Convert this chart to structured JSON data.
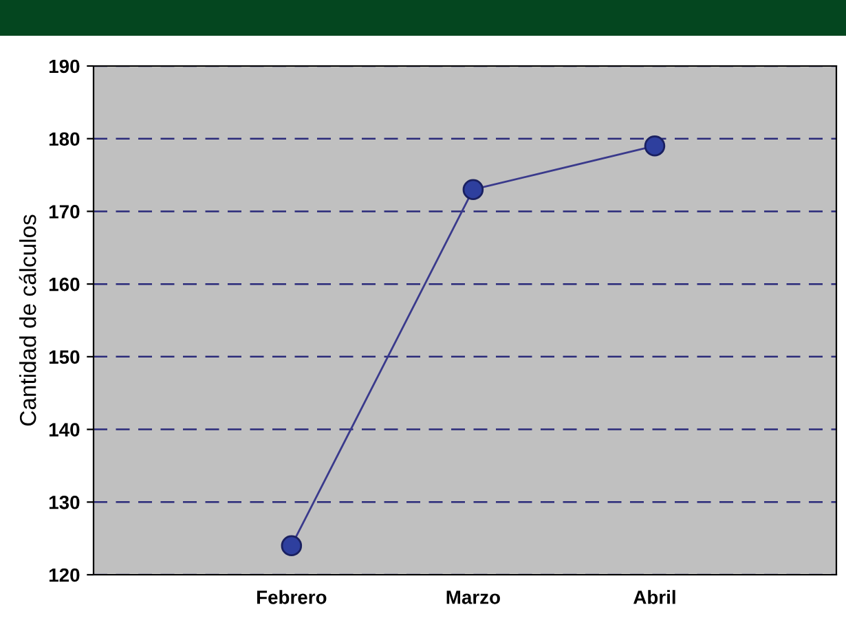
{
  "chart_data": {
    "type": "line",
    "ylabel": "Cantidad de cálculos",
    "categories": [
      "Febrero",
      "Marzo",
      "Abril"
    ],
    "series": [
      {
        "color": "#2e3f9e",
        "values": [
          124,
          173,
          179
        ]
      }
    ],
    "ylim": [
      120,
      190
    ],
    "yticks": [
      120,
      130,
      140,
      150,
      160,
      170,
      180,
      190
    ],
    "grid": "y",
    "marker": "circle",
    "line_style": "solid",
    "legend": false
  }
}
